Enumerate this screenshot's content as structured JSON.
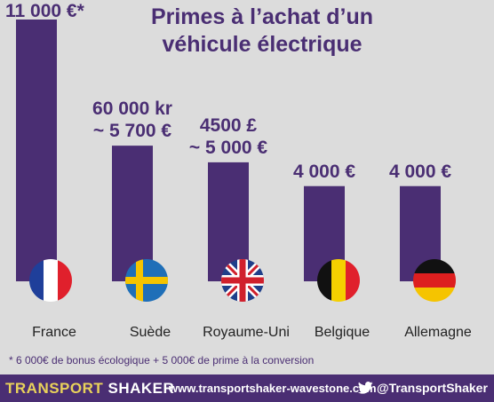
{
  "chart_data": {
    "type": "bar",
    "title_lines": [
      "Primes à l’achat d’un",
      "véhicule électrique"
    ],
    "categories": [
      "France",
      "Suède",
      "Royaume-Uni",
      "Belgique",
      "Allemagne"
    ],
    "values": [
      11000,
      5700,
      5000,
      4000,
      4000
    ],
    "value_labels": [
      [
        "11 000 €*"
      ],
      [
        "60 000 kr",
        "~ 5 700 €"
      ],
      [
        "4500 £",
        "~ 5 000 €"
      ],
      [
        "4 000 €"
      ],
      [
        "4 000 €"
      ]
    ],
    "ylim": [
      0,
      11000
    ],
    "bar_color": "#4a2e73",
    "flags": [
      "france-flag-icon",
      "sweden-flag-icon",
      "uk-flag-icon",
      "belgium-flag-icon",
      "germany-flag-icon"
    ]
  },
  "footnote": "* 6 000€ de bonus écologique + 5 000€ de prime à la conversion",
  "footer": {
    "brand_part1": "TRANSPORT",
    "brand_part2": "SHAKER",
    "website": "www.transportshaker-wavestone.com",
    "twitter_icon": "twitter-bird-icon",
    "twitter_handle": "@TransportShaker",
    "background": "#4a2e73",
    "brand_accent": "#e9d25a"
  }
}
